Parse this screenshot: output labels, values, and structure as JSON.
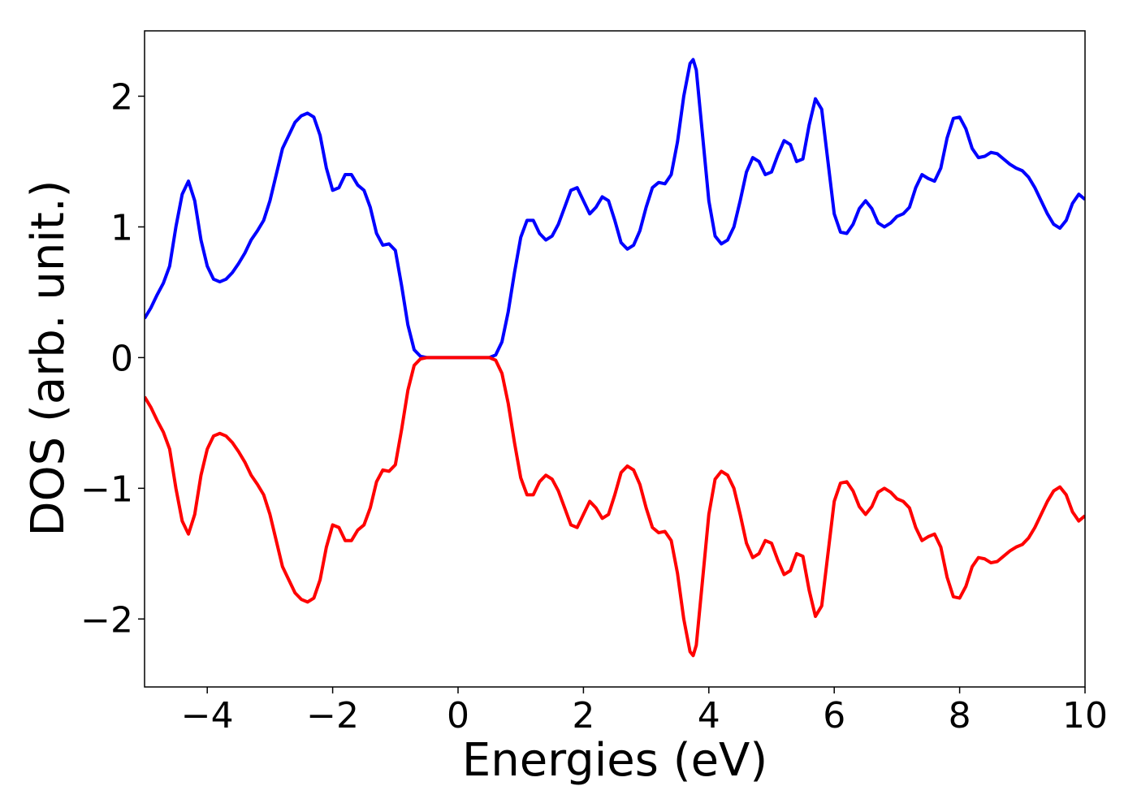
{
  "chart_data": {
    "type": "line",
    "xlabel": "Energies (eV)",
    "ylabel": "DOS (arb. unit.)",
    "xlim": [
      -5,
      10
    ],
    "ylim": [
      -2.52,
      2.5
    ],
    "xticks": [
      {
        "value": -4,
        "label": "−4"
      },
      {
        "value": -2,
        "label": "−2"
      },
      0,
      2,
      4,
      6,
      8,
      10
    ],
    "yticks": [
      {
        "value": -2,
        "label": "−2"
      },
      {
        "value": -1,
        "label": "−1"
      },
      0,
      1,
      2
    ],
    "x": [
      -5.0,
      -4.9,
      -4.8,
      -4.7,
      -4.6,
      -4.5,
      -4.4,
      -4.3,
      -4.2,
      -4.1,
      -4.0,
      -3.9,
      -3.8,
      -3.7,
      -3.6,
      -3.5,
      -3.4,
      -3.3,
      -3.2,
      -3.1,
      -3.0,
      -2.9,
      -2.8,
      -2.7,
      -2.6,
      -2.5,
      -2.4,
      -2.3,
      -2.2,
      -2.1,
      -2.0,
      -1.9,
      -1.8,
      -1.7,
      -1.6,
      -1.5,
      -1.4,
      -1.3,
      -1.2,
      -1.1,
      -1.0,
      -0.9,
      -0.8,
      -0.7,
      -0.6,
      -0.5,
      -0.4,
      -0.3,
      -0.2,
      -0.1,
      0.0,
      0.1,
      0.2,
      0.3,
      0.4,
      0.5,
      0.6,
      0.7,
      0.8,
      0.9,
      1.0,
      1.1,
      1.2,
      1.3,
      1.4,
      1.5,
      1.6,
      1.7,
      1.8,
      1.9,
      2.0,
      2.1,
      2.2,
      2.3,
      2.4,
      2.5,
      2.6,
      2.7,
      2.8,
      2.9,
      3.0,
      3.1,
      3.2,
      3.3,
      3.4,
      3.5,
      3.6,
      3.7,
      3.75,
      3.8,
      3.9,
      4.0,
      4.1,
      4.2,
      4.3,
      4.4,
      4.5,
      4.6,
      4.7,
      4.8,
      4.9,
      5.0,
      5.1,
      5.2,
      5.3,
      5.4,
      5.5,
      5.6,
      5.7,
      5.8,
      5.9,
      6.0,
      6.1,
      6.2,
      6.3,
      6.4,
      6.5,
      6.6,
      6.7,
      6.8,
      6.9,
      7.0,
      7.1,
      7.2,
      7.3,
      7.4,
      7.5,
      7.6,
      7.7,
      7.8,
      7.9,
      8.0,
      8.1,
      8.2,
      8.3,
      8.4,
      8.5,
      8.6,
      8.7,
      8.8,
      8.9,
      9.0,
      9.1,
      9.2,
      9.3,
      9.4,
      9.5,
      9.6,
      9.7,
      9.8,
      9.9,
      10.0
    ],
    "series": [
      {
        "color": "#0000ff",
        "values": [
          0.3,
          0.38,
          0.48,
          0.57,
          0.7,
          1.0,
          1.25,
          1.35,
          1.2,
          0.9,
          0.7,
          0.6,
          0.58,
          0.6,
          0.65,
          0.72,
          0.8,
          0.9,
          0.97,
          1.05,
          1.2,
          1.4,
          1.6,
          1.7,
          1.8,
          1.85,
          1.87,
          1.84,
          1.7,
          1.45,
          1.28,
          1.3,
          1.4,
          1.4,
          1.32,
          1.28,
          1.15,
          0.95,
          0.86,
          0.87,
          0.82,
          0.55,
          0.25,
          0.06,
          0.01,
          0,
          0,
          0,
          0,
          0,
          0,
          0,
          0,
          0,
          0,
          0,
          0.02,
          0.12,
          0.35,
          0.65,
          0.92,
          1.05,
          1.05,
          0.95,
          0.9,
          0.93,
          1.02,
          1.15,
          1.28,
          1.3,
          1.2,
          1.1,
          1.15,
          1.23,
          1.2,
          1.05,
          0.88,
          0.83,
          0.86,
          0.97,
          1.15,
          1.3,
          1.34,
          1.33,
          1.4,
          1.65,
          2.0,
          2.25,
          2.28,
          2.2,
          1.7,
          1.2,
          0.93,
          0.87,
          0.9,
          1.0,
          1.2,
          1.42,
          1.53,
          1.5,
          1.4,
          1.42,
          1.55,
          1.66,
          1.63,
          1.5,
          1.52,
          1.78,
          1.98,
          1.9,
          1.5,
          1.1,
          0.96,
          0.95,
          1.02,
          1.14,
          1.2,
          1.14,
          1.03,
          1.0,
          1.03,
          1.08,
          1.1,
          1.15,
          1.3,
          1.4,
          1.37,
          1.35,
          1.45,
          1.68,
          1.83,
          1.84,
          1.75,
          1.6,
          1.53,
          1.54,
          1.57,
          1.56,
          1.52,
          1.48,
          1.45,
          1.43,
          1.38,
          1.3,
          1.2,
          1.1,
          1.02,
          0.99,
          1.05,
          1.18,
          1.25,
          1.21
        ]
      },
      {
        "color": "#ff0000",
        "values": [
          -0.3,
          -0.38,
          -0.48,
          -0.57,
          -0.7,
          -1.0,
          -1.25,
          -1.35,
          -1.2,
          -0.9,
          -0.7,
          -0.6,
          -0.58,
          -0.6,
          -0.65,
          -0.72,
          -0.8,
          -0.9,
          -0.97,
          -1.05,
          -1.2,
          -1.4,
          -1.6,
          -1.7,
          -1.8,
          -1.85,
          -1.87,
          -1.84,
          -1.7,
          -1.45,
          -1.28,
          -1.3,
          -1.4,
          -1.4,
          -1.32,
          -1.28,
          -1.15,
          -0.95,
          -0.86,
          -0.87,
          -0.82,
          -0.55,
          -0.25,
          -0.06,
          -0.01,
          0,
          0,
          0,
          0,
          0,
          0,
          0,
          0,
          0,
          0,
          0,
          -0.02,
          -0.12,
          -0.35,
          -0.65,
          -0.92,
          -1.05,
          -1.05,
          -0.95,
          -0.9,
          -0.93,
          -1.02,
          -1.15,
          -1.28,
          -1.3,
          -1.2,
          -1.1,
          -1.15,
          -1.23,
          -1.2,
          -1.05,
          -0.88,
          -0.83,
          -0.86,
          -0.97,
          -1.15,
          -1.3,
          -1.34,
          -1.33,
          -1.4,
          -1.65,
          -2.0,
          -2.25,
          -2.28,
          -2.2,
          -1.7,
          -1.2,
          -0.93,
          -0.87,
          -0.9,
          -1.0,
          -1.2,
          -1.42,
          -1.53,
          -1.5,
          -1.4,
          -1.42,
          -1.55,
          -1.66,
          -1.63,
          -1.5,
          -1.52,
          -1.78,
          -1.98,
          -1.9,
          -1.5,
          -1.1,
          -0.96,
          -0.95,
          -1.02,
          -1.14,
          -1.2,
          -1.14,
          -1.03,
          -1.0,
          -1.03,
          -1.08,
          -1.1,
          -1.15,
          -1.3,
          -1.4,
          -1.37,
          -1.35,
          -1.45,
          -1.68,
          -1.83,
          -1.84,
          -1.75,
          -1.6,
          -1.53,
          -1.54,
          -1.57,
          -1.56,
          -1.52,
          -1.48,
          -1.45,
          -1.43,
          -1.38,
          -1.3,
          -1.2,
          -1.1,
          -1.02,
          -0.99,
          -1.05,
          -1.18,
          -1.25,
          -1.21
        ]
      }
    ]
  }
}
